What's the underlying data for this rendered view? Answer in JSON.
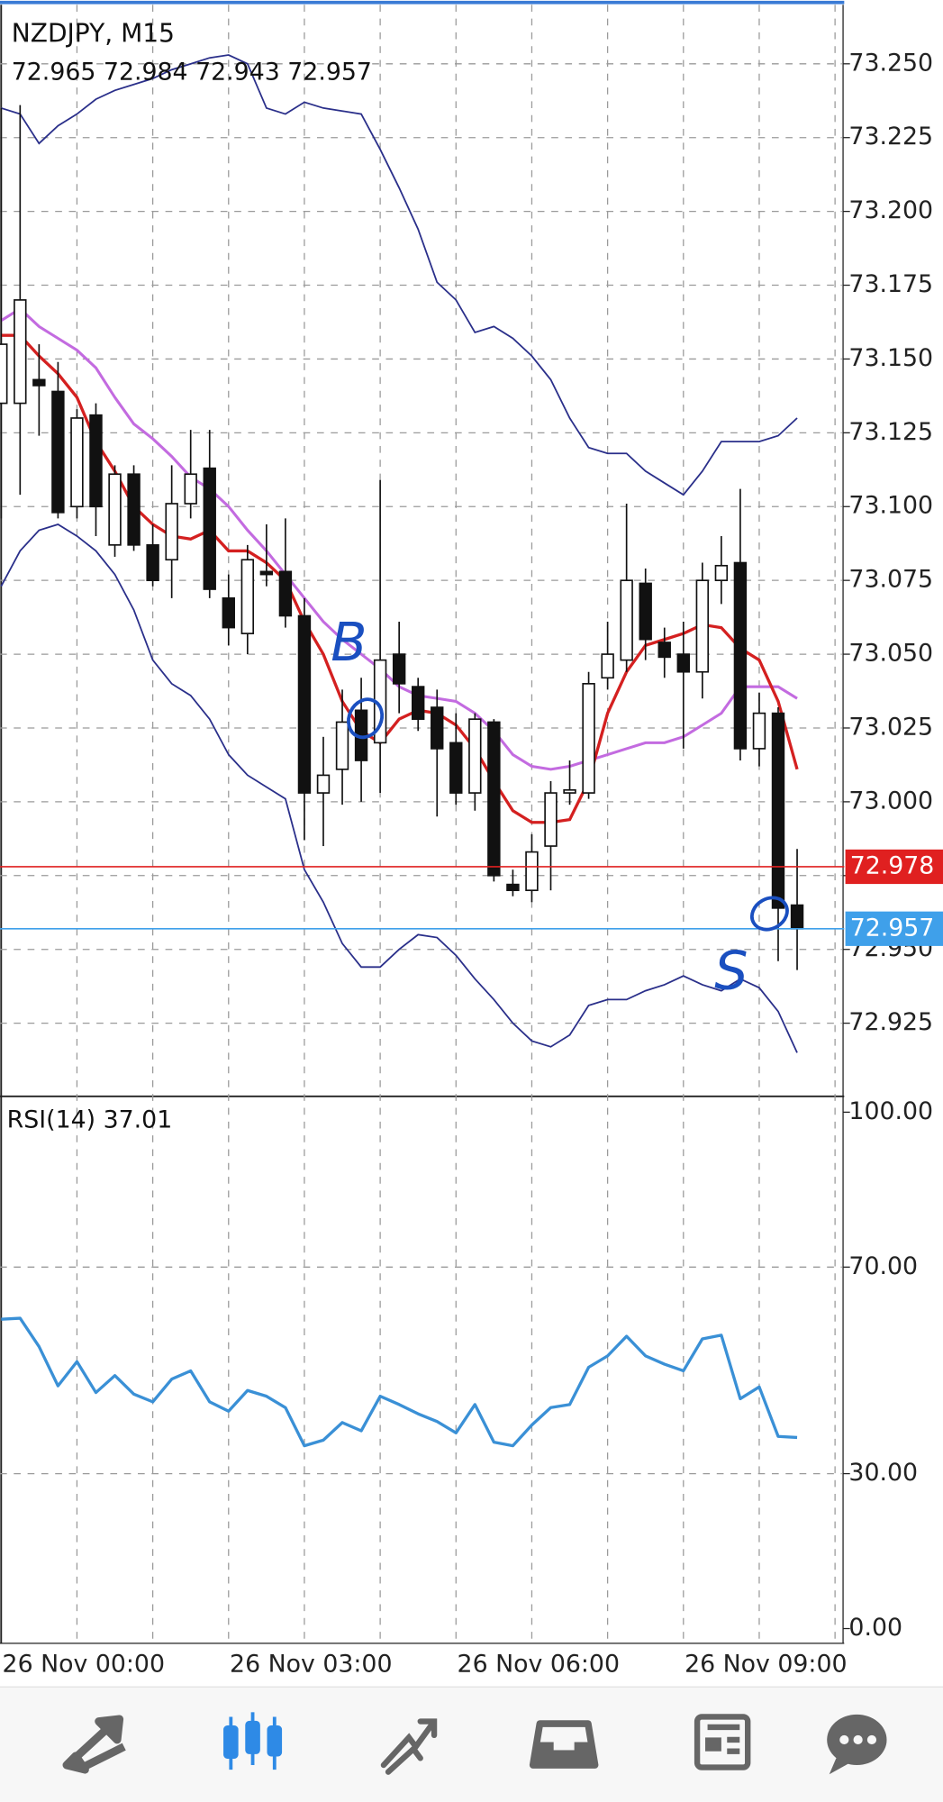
{
  "chart_data": [
    {
      "type": "candlestick",
      "title": "NZDJPY, M15",
      "categories": [
        "26 Nov 00:00",
        null,
        null,
        null,
        null,
        null,
        null,
        null,
        null,
        null,
        null,
        null,
        "26 Nov 03:00",
        null,
        null,
        null,
        null,
        null,
        null,
        null,
        null,
        null,
        null,
        null,
        "26 Nov 06:00",
        null,
        null,
        null,
        null,
        null,
        null,
        null,
        null,
        null,
        null,
        null,
        "26 Nov 09:00",
        null,
        null,
        null,
        null,
        null,
        null
      ],
      "open": [
        73.135,
        73.135,
        73.143,
        73.139,
        73.1,
        73.131,
        73.087,
        73.111,
        73.087,
        73.082,
        73.101,
        73.113,
        73.069,
        73.057,
        73.078,
        73.078,
        73.063,
        73.003,
        73.011,
        73.031,
        73.02,
        73.05,
        73.039,
        73.032,
        73.02,
        73.003,
        73.027,
        72.972,
        72.97,
        72.985,
        73.003,
        73.003,
        73.042,
        73.048,
        73.074,
        73.054,
        73.05,
        73.044,
        73.075,
        73.081,
        73.018,
        73.03,
        72.965
      ],
      "high": [
        73.235,
        73.236,
        73.155,
        73.149,
        73.133,
        73.135,
        73.114,
        73.114,
        73.094,
        73.114,
        73.126,
        73.126,
        73.077,
        73.087,
        73.094,
        73.096,
        73.069,
        73.022,
        73.038,
        73.042,
        73.109,
        73.061,
        73.042,
        73.038,
        73.03,
        73.03,
        73.028,
        72.977,
        72.989,
        73.007,
        73.014,
        73.044,
        73.061,
        73.101,
        73.079,
        73.059,
        73.061,
        73.081,
        73.09,
        73.106,
        73.037,
        73.032,
        72.984
      ],
      "low": [
        73.096,
        73.104,
        73.124,
        73.096,
        73.096,
        73.09,
        73.083,
        73.085,
        73.073,
        73.069,
        73.096,
        73.069,
        73.053,
        73.05,
        73.073,
        73.059,
        72.987,
        72.985,
        72.999,
        73.0,
        73.003,
        73.03,
        73.024,
        72.995,
        72.999,
        72.997,
        72.973,
        72.968,
        72.966,
        72.97,
        72.999,
        73.001,
        73.038,
        73.044,
        73.048,
        73.042,
        73.018,
        73.035,
        73.067,
        73.014,
        73.012,
        72.946,
        72.943
      ],
      "close": [
        73.155,
        73.17,
        73.141,
        73.098,
        73.13,
        73.1,
        73.111,
        73.087,
        73.075,
        73.101,
        73.111,
        73.072,
        73.059,
        73.082,
        73.077,
        73.063,
        73.003,
        73.009,
        73.027,
        73.014,
        73.048,
        73.04,
        73.028,
        73.018,
        73.003,
        73.028,
        72.975,
        72.97,
        72.983,
        73.003,
        73.004,
        73.04,
        73.05,
        73.075,
        73.055,
        73.049,
        73.044,
        73.075,
        73.08,
        73.018,
        73.03,
        72.964,
        72.957
      ],
      "overlays": [
        {
          "color": "#2a2f8a",
          "values": [
            73.235,
            73.233,
            73.223,
            73.229,
            73.233,
            73.238,
            73.241,
            73.243,
            73.245,
            73.248,
            73.25,
            73.252,
            73.253,
            73.25,
            73.235,
            73.233,
            73.237,
            73.235,
            73.234,
            73.233,
            73.221,
            73.208,
            73.194,
            73.176,
            73.17,
            73.159,
            73.161,
            73.157,
            73.151,
            73.143,
            73.13,
            73.12,
            73.118,
            73.118,
            73.112,
            73.108,
            73.104,
            73.112,
            73.122,
            73.122,
            73.122,
            73.124,
            73.13
          ]
        },
        {
          "color": "#2a2f8a",
          "values": [
            73.073,
            73.085,
            73.092,
            73.094,
            73.09,
            73.085,
            73.077,
            73.065,
            73.048,
            73.04,
            73.036,
            73.028,
            73.016,
            73.009,
            73.005,
            73.001,
            72.977,
            72.966,
            72.952,
            72.944,
            72.944,
            72.95,
            72.955,
            72.954,
            72.948,
            72.94,
            72.933,
            72.925,
            72.919,
            72.917,
            72.921,
            72.931,
            72.933,
            72.933,
            72.936,
            72.938,
            72.941,
            72.938,
            72.936,
            72.94,
            72.937,
            72.929,
            72.915
          ]
        },
        {
          "color": "#c36be0",
          "values": [
            73.163,
            73.167,
            73.161,
            73.157,
            73.153,
            73.147,
            73.137,
            73.128,
            73.123,
            73.117,
            73.11,
            73.106,
            73.1,
            73.092,
            73.085,
            73.077,
            73.069,
            73.061,
            73.055,
            73.05,
            73.045,
            73.039,
            73.036,
            73.035,
            73.034,
            73.03,
            73.024,
            73.016,
            73.012,
            73.011,
            73.012,
            73.014,
            73.016,
            73.018,
            73.02,
            73.02,
            73.022,
            73.026,
            73.03,
            73.039,
            73.039,
            73.039,
            73.035
          ]
        },
        {
          "color": "#d42020",
          "values": [
            73.158,
            73.158,
            73.151,
            73.145,
            73.137,
            73.122,
            73.112,
            73.1,
            73.094,
            73.09,
            73.089,
            73.092,
            73.085,
            73.085,
            73.081,
            73.075,
            73.061,
            73.05,
            73.034,
            73.024,
            73.02,
            73.028,
            73.031,
            73.03,
            73.026,
            73.018,
            73.007,
            72.997,
            72.993,
            72.993,
            72.994,
            73.007,
            73.03,
            73.044,
            73.053,
            73.055,
            73.057,
            73.06,
            73.059,
            73.052,
            73.048,
            73.034,
            73.011
          ]
        }
      ],
      "ylim": [
        72.901,
        73.27
      ],
      "yticks": [
        72.925,
        {
          "value": 72.95,
          "label": "72.950"
        },
        72.975,
        {
          "value": 73.0,
          "label": "73.000"
        },
        73.025,
        {
          "value": 73.05,
          "label": "73.050"
        },
        73.075,
        {
          "value": 73.1,
          "label": "73.100"
        },
        73.125,
        {
          "value": 73.15,
          "label": "73.150"
        },
        73.175,
        {
          "value": 73.2,
          "label": "73.200"
        },
        73.225,
        {
          "value": 73.25,
          "label": "73.250"
        }
      ],
      "grid": true,
      "price_lines": [
        {
          "value": 72.978,
          "color": "#e02020"
        },
        {
          "value": 72.957,
          "color": "#3fa0ea"
        }
      ],
      "annotations": [
        "B",
        "S"
      ]
    },
    {
      "type": "line",
      "title": "RSI(14)",
      "color": "#3a90d6",
      "values": [
        59.9,
        60.1,
        54.6,
        47.0,
        51.7,
        45.7,
        49.0,
        45.4,
        43.9,
        48.3,
        49.9,
        43.9,
        42.1,
        46.1,
        45.0,
        42.8,
        35.4,
        36.5,
        39.9,
        38.3,
        45.0,
        43.4,
        41.6,
        40.1,
        37.9,
        43.4,
        36.1,
        35.4,
        39.4,
        42.8,
        43.4,
        50.6,
        52.8,
        56.6,
        52.8,
        51.2,
        49.9,
        56.1,
        56.8,
        44.5,
        46.8,
        37.2,
        37.01
      ],
      "ylim": [
        -2.4,
        102.4
      ],
      "yticks": [
        {
          "value": 0,
          "label": "0.00"
        },
        {
          "value": 30,
          "label": "30.00"
        },
        {
          "value": 70,
          "label": "70.00"
        },
        {
          "value": 100,
          "label": "100.00"
        }
      ],
      "grid": true
    }
  ]
}
